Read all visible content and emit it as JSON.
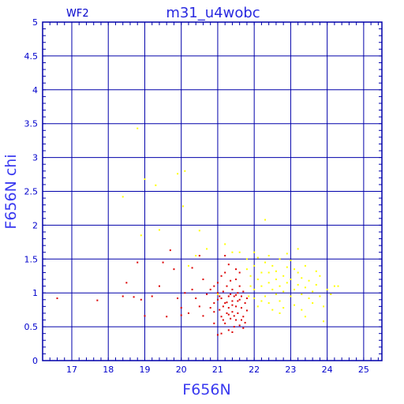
{
  "chart_data": {
    "type": "scatter",
    "title": "m31_u4wobc",
    "corner_label": "WF2",
    "xlabel": "F656N",
    "ylabel": "F656N chi",
    "xlim": [
      16.2,
      25.5
    ],
    "ylim": [
      0,
      5
    ],
    "xticks": [
      17,
      18,
      19,
      20,
      21,
      22,
      23,
      24,
      25
    ],
    "yticks": [
      0,
      0.5,
      1,
      1.5,
      2,
      2.5,
      3,
      3.5,
      4,
      4.5,
      5
    ],
    "ytick_labels": [
      "0",
      "0.5",
      "1",
      "1.5",
      "2",
      "2.5",
      "3",
      "3.5",
      "4",
      "4.5",
      "5"
    ],
    "grid": true,
    "legend": "none",
    "colors": {
      "axes": "#0000aa",
      "grid": "#0000aa",
      "red": "#dd0000",
      "yellow": "#ffff00"
    },
    "series": [
      {
        "color": "#dd0000",
        "points": [
          [
            16.6,
            0.92
          ],
          [
            17.7,
            0.89
          ],
          [
            18.4,
            0.95
          ],
          [
            18.5,
            1.15
          ],
          [
            18.7,
            0.94
          ],
          [
            18.8,
            1.45
          ],
          [
            18.9,
            0.9
          ],
          [
            19.0,
            0.66
          ],
          [
            19.2,
            0.95
          ],
          [
            19.4,
            1.1
          ],
          [
            19.5,
            1.45
          ],
          [
            19.6,
            0.65
          ],
          [
            19.7,
            1.63
          ],
          [
            19.8,
            1.35
          ],
          [
            19.9,
            0.92
          ],
          [
            20.0,
            0.78
          ],
          [
            20.0,
            0.67
          ],
          [
            20.1,
            1.0
          ],
          [
            20.2,
            0.7
          ],
          [
            20.3,
            1.05
          ],
          [
            20.3,
            1.37
          ],
          [
            20.4,
            0.92
          ],
          [
            20.5,
            0.8
          ],
          [
            20.5,
            1.55
          ],
          [
            20.6,
            0.66
          ],
          [
            20.6,
            1.2
          ],
          [
            20.7,
            0.98
          ],
          [
            20.8,
            0.78
          ],
          [
            20.8,
            1.05
          ],
          [
            20.9,
            0.55
          ],
          [
            20.9,
            1.1
          ],
          [
            20.9,
            0.85
          ],
          [
            21.0,
            0.9
          ],
          [
            21.0,
            0.38
          ],
          [
            21.0,
            1.0
          ],
          [
            21.05,
            0.75
          ],
          [
            21.1,
            1.25
          ],
          [
            21.1,
            0.65
          ],
          [
            21.1,
            0.92
          ],
          [
            21.15,
            0.8
          ],
          [
            21.15,
            1.02
          ],
          [
            21.2,
            1.3
          ],
          [
            21.2,
            0.55
          ],
          [
            21.2,
            0.85
          ],
          [
            21.25,
            0.7
          ],
          [
            21.25,
            1.1
          ],
          [
            21.3,
            0.95
          ],
          [
            21.3,
            0.45
          ],
          [
            21.3,
            0.78
          ],
          [
            21.35,
            1.18
          ],
          [
            21.35,
            0.62
          ],
          [
            21.4,
            0.88
          ],
          [
            21.4,
            1.05
          ],
          [
            21.4,
            0.72
          ],
          [
            21.45,
            0.5
          ],
          [
            21.45,
            0.95
          ],
          [
            21.5,
            1.2
          ],
          [
            21.5,
            0.8
          ],
          [
            21.5,
            0.6
          ],
          [
            21.55,
            1.0
          ],
          [
            21.55,
            0.7
          ],
          [
            21.6,
            0.9
          ],
          [
            21.6,
            0.52
          ],
          [
            21.6,
            1.1
          ],
          [
            21.65,
            0.78
          ],
          [
            21.65,
            0.95
          ],
          [
            21.7,
            0.65
          ],
          [
            21.7,
            1.02
          ],
          [
            21.75,
            0.85
          ],
          [
            21.75,
            0.56
          ],
          [
            21.8,
            0.92
          ],
          [
            21.8,
            0.74
          ],
          [
            21.3,
            1.42
          ],
          [
            21.2,
            1.55
          ],
          [
            21.5,
            1.35
          ],
          [
            21.1,
            0.4
          ],
          [
            21.4,
            0.42
          ],
          [
            21.0,
            1.15
          ],
          [
            20.9,
            0.72
          ],
          [
            21.6,
            1.3
          ],
          [
            21.7,
            0.48
          ],
          [
            21.35,
            0.98
          ],
          [
            21.25,
            0.86
          ],
          [
            21.45,
            0.66
          ],
          [
            21.55,
            0.88
          ],
          [
            21.15,
            0.6
          ],
          [
            21.05,
            0.95
          ],
          [
            21.65,
            0.6
          ],
          [
            21.5,
            0.97
          ],
          [
            21.3,
            0.68
          ],
          [
            21.4,
            0.82
          ]
        ]
      },
      {
        "color": "#ffff00",
        "points": [
          [
            18.4,
            2.42
          ],
          [
            18.8,
            3.43
          ],
          [
            18.9,
            1.85
          ],
          [
            19.0,
            2.68
          ],
          [
            19.3,
            2.59
          ],
          [
            19.4,
            1.93
          ],
          [
            19.9,
            2.76
          ],
          [
            20.05,
            2.28
          ],
          [
            20.1,
            2.8
          ],
          [
            20.2,
            1.4
          ],
          [
            20.4,
            1.55
          ],
          [
            20.5,
            1.92
          ],
          [
            20.7,
            1.65
          ],
          [
            21.0,
            0.98
          ],
          [
            21.2,
            1.72
          ],
          [
            21.4,
            1.6
          ],
          [
            21.6,
            1.6
          ],
          [
            21.8,
            1.35
          ],
          [
            21.8,
            1.5
          ],
          [
            21.9,
            1.1
          ],
          [
            21.9,
            1.25
          ],
          [
            22.0,
            1.05
          ],
          [
            22.0,
            1.4
          ],
          [
            22.0,
            0.92
          ],
          [
            22.1,
            1.2
          ],
          [
            22.1,
            1.52
          ],
          [
            22.1,
            0.8
          ],
          [
            22.2,
            1.1
          ],
          [
            22.2,
            1.3
          ],
          [
            22.3,
            1.45
          ],
          [
            22.3,
            0.95
          ],
          [
            22.3,
            2.08
          ],
          [
            22.4,
            1.15
          ],
          [
            22.4,
            1.3
          ],
          [
            22.4,
            0.85
          ],
          [
            22.5,
            1.05
          ],
          [
            22.5,
            1.4
          ],
          [
            22.5,
            0.75
          ],
          [
            22.6,
            1.2
          ],
          [
            22.6,
            0.98
          ],
          [
            22.6,
            1.32
          ],
          [
            22.7,
            1.1
          ],
          [
            22.7,
            1.5
          ],
          [
            22.7,
            0.88
          ],
          [
            22.8,
            1.25
          ],
          [
            22.8,
            1.02
          ],
          [
            22.8,
            0.78
          ],
          [
            22.9,
            1.15
          ],
          [
            22.9,
            1.38
          ],
          [
            23.0,
            0.95
          ],
          [
            23.0,
            1.2
          ],
          [
            23.0,
            1.48
          ],
          [
            23.1,
            1.05
          ],
          [
            23.1,
            0.82
          ],
          [
            23.2,
            1.12
          ],
          [
            23.2,
            1.3
          ],
          [
            23.3,
            0.98
          ],
          [
            23.3,
            1.22
          ],
          [
            23.3,
            0.75
          ],
          [
            23.4,
            1.08
          ],
          [
            23.4,
            1.4
          ],
          [
            23.5,
            0.92
          ],
          [
            23.5,
            1.18
          ],
          [
            23.6,
            1.02
          ],
          [
            23.6,
            0.85
          ],
          [
            23.7,
            1.12
          ],
          [
            23.8,
            0.95
          ],
          [
            23.8,
            1.25
          ],
          [
            23.9,
            0.8
          ],
          [
            24.0,
            1.05
          ],
          [
            24.1,
            0.98
          ],
          [
            24.2,
            1.1
          ],
          [
            24.3,
            1.1
          ],
          [
            22.9,
            1.58
          ],
          [
            23.2,
            1.65
          ],
          [
            22.4,
            1.55
          ],
          [
            23.4,
            0.65
          ],
          [
            23.9,
            0.58
          ],
          [
            22.7,
            0.7
          ],
          [
            22.2,
            0.88
          ],
          [
            21.85,
            0.95
          ],
          [
            23.7,
            1.32
          ],
          [
            22.0,
            1.6
          ],
          [
            23.1,
            1.35
          ]
        ]
      }
    ]
  }
}
